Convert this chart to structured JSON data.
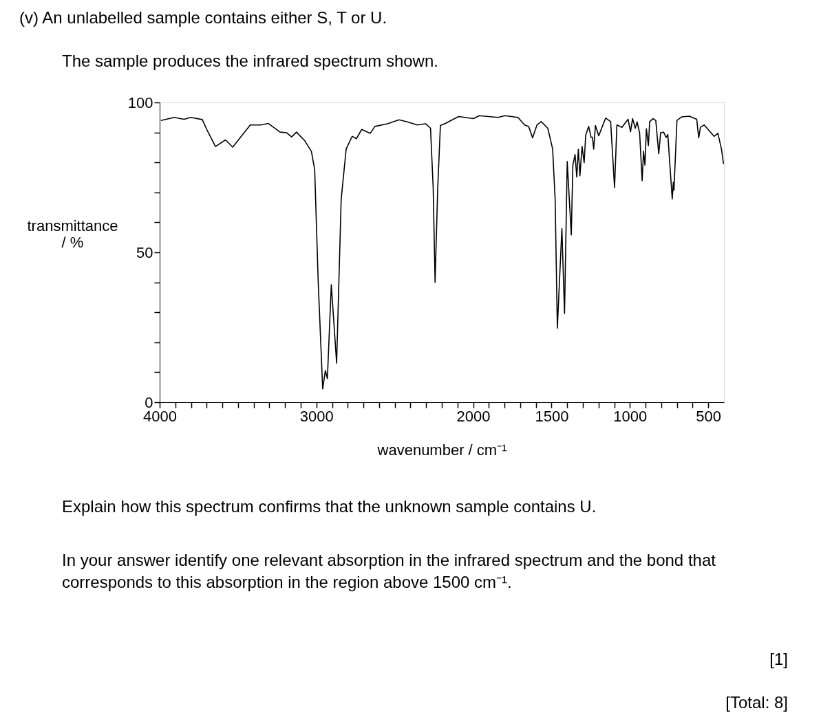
{
  "chart_data": {
    "type": "line",
    "title": "(v) An unlabelled sample contains either S, T or U.",
    "subtitle": "The sample produces the infrared spectrum shown.",
    "xlabel": "wavenumber / cm⁻¹",
    "ylabel": "transmittance / %",
    "x": [
      3992,
      3907,
      3844,
      3802,
      3728,
      3696,
      3644,
      3580,
      3534,
      3422,
      3354,
      3306,
      3232,
      3190,
      3158,
      3127,
      3074,
      3032,
      3011,
      2989,
      2960,
      2943,
      2930,
      2905,
      2871,
      2842,
      2810,
      2772,
      2745,
      2711,
      2656,
      2627,
      2546,
      2473,
      2420,
      2356,
      2304,
      2272,
      2255,
      2243,
      2226,
      2209,
      2177,
      2093,
      1998,
      1962,
      1841,
      1798,
      1714,
      1672,
      1646,
      1621,
      1593,
      1566,
      1524,
      1493,
      1477,
      1463,
      1434,
      1417,
      1400,
      1374,
      1364,
      1350,
      1339,
      1329,
      1319,
      1305,
      1292,
      1282,
      1263,
      1248,
      1239,
      1231,
      1220,
      1199,
      1155,
      1123,
      1098,
      1083,
      1051,
      1012,
      996,
      983,
      966,
      954,
      938,
      922,
      913,
      904,
      895,
      882,
      874,
      853,
      835,
      816,
      804,
      785,
      769,
      758,
      745,
      730,
      723,
      719,
      700,
      669,
      621,
      574,
      561,
      550,
      526,
      463,
      439,
      416,
      403
    ],
    "values": [
      94.0,
      95.0,
      94.4,
      95.0,
      94.3,
      90.6,
      85.3,
      87.5,
      85.1,
      92.5,
      92.5,
      93.0,
      90.1,
      89.9,
      88.5,
      90.1,
      87.2,
      83.7,
      77.6,
      40.9,
      4.4,
      10.6,
      7.9,
      39.2,
      13.0,
      67.7,
      84.5,
      88.7,
      87.9,
      91.0,
      89.7,
      92.0,
      92.9,
      94.2,
      93.5,
      92.5,
      92.9,
      91.4,
      71.5,
      40.0,
      71.5,
      92.3,
      93.0,
      95.3,
      94.6,
      95.6,
      95.0,
      95.6,
      95.0,
      92.5,
      92.0,
      88.2,
      92.5,
      93.6,
      91.4,
      84.5,
      67.7,
      24.7,
      57.9,
      29.6,
      80.3,
      55.8,
      79.1,
      82.6,
      75.1,
      84.4,
      75.5,
      85.3,
      79.9,
      89.1,
      92.0,
      88.4,
      88.4,
      84.4,
      92.3,
      88.9,
      94.8,
      93.6,
      71.6,
      92.5,
      91.7,
      94.4,
      90.2,
      94.6,
      91.4,
      93.5,
      89.8,
      73.9,
      83.7,
      79.1,
      91.2,
      85.6,
      93.6,
      94.6,
      94.0,
      82.9,
      89.9,
      90.1,
      88.3,
      89.3,
      79.1,
      67.8,
      73.4,
      70.7,
      94.0,
      95.2,
      95.4,
      94.4,
      88.2,
      91.7,
      92.5,
      88.7,
      89.7,
      84.5,
      79.5
    ],
    "color": "#000000",
    "xlim": [
      4000,
      400
    ],
    "xticks": [
      4000,
      {
        "value": 3900,
        "label": null
      },
      {
        "value": 3800,
        "label": null
      },
      {
        "value": 3700,
        "label": null
      },
      {
        "value": 3600,
        "label": null
      },
      {
        "value": 3500,
        "label": null
      },
      {
        "value": 3400,
        "label": null
      },
      {
        "value": 3300,
        "label": null
      },
      {
        "value": 3200,
        "label": null
      },
      {
        "value": 3100,
        "label": null
      },
      3000,
      {
        "value": 2900,
        "label": null
      },
      {
        "value": 2800,
        "label": null
      },
      {
        "value": 2700,
        "label": null
      },
      {
        "value": 2600,
        "label": null
      },
      {
        "value": 2500,
        "label": null
      },
      {
        "value": 2400,
        "label": null
      },
      {
        "value": 2300,
        "label": null
      },
      {
        "value": 2200,
        "label": null
      },
      {
        "value": 2100,
        "label": null
      },
      2000,
      {
        "value": 1900,
        "label": null
      },
      {
        "value": 1800,
        "label": null
      },
      {
        "value": 1700,
        "label": null
      },
      {
        "value": 1600,
        "label": null
      },
      1500,
      {
        "value": 1400,
        "label": null
      },
      {
        "value": 1300,
        "label": null
      },
      {
        "value": 1200,
        "label": null
      },
      {
        "value": 1100,
        "label": null
      },
      1000,
      {
        "value": 900,
        "label": null
      },
      {
        "value": 800,
        "label": null
      },
      {
        "value": 700,
        "label": null
      },
      {
        "value": 600,
        "label": null
      },
      500
    ],
    "ylim": [
      0,
      100
    ],
    "yticks": [
      0,
      {
        "value": 10,
        "label": null
      },
      {
        "value": 20,
        "label": null
      },
      {
        "value": 30,
        "label": null
      },
      {
        "value": 40,
        "label": null
      },
      50,
      {
        "value": 60,
        "label": null
      },
      {
        "value": 70,
        "label": null
      },
      {
        "value": 80,
        "label": null
      },
      {
        "value": 90,
        "label": null
      },
      100
    ],
    "grid": false,
    "marker": "none",
    "line_style": "solid",
    "annotations": [
      "Explain how this spectrum confirms that the unknown sample contains U.",
      "In your answer identify one relevant absorption in the infrared spectrum and the bond that corresponds to this absorption in the region above 1500 cm⁻¹.",
      "[1]",
      "[Total: 8]"
    ]
  }
}
